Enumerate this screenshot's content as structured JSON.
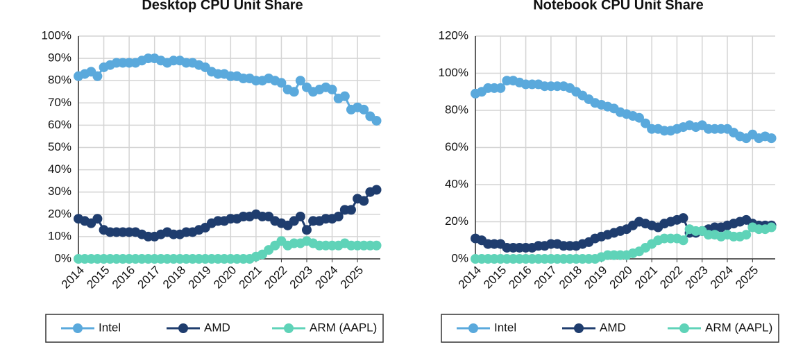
{
  "chart_data": [
    {
      "type": "line",
      "title": "Desktop CPU Unit Share",
      "x": [
        2014,
        2014.25,
        2014.5,
        2014.75,
        2015,
        2015.25,
        2015.5,
        2015.75,
        2016,
        2016.25,
        2016.5,
        2016.75,
        2017,
        2017.25,
        2017.5,
        2017.75,
        2018,
        2018.25,
        2018.5,
        2018.75,
        2019,
        2019.25,
        2019.5,
        2019.75,
        2020,
        2020.25,
        2020.5,
        2020.75,
        2021,
        2021.25,
        2021.5,
        2021.75,
        2022,
        2022.25,
        2022.5,
        2022.75,
        2023,
        2023.25,
        2023.5,
        2023.75,
        2024,
        2024.25,
        2024.5,
        2024.75,
        2025,
        2025.25,
        2025.5,
        2025.75
      ],
      "xlim": [
        2014,
        2025.9
      ],
      "xticks": [
        2014,
        2015,
        2016,
        2017,
        2018,
        2019,
        2020,
        2021,
        2022,
        2023,
        2024,
        2025
      ],
      "ylim": [
        0,
        100
      ],
      "yticks": [
        {
          "value": 0,
          "label": "0%"
        },
        {
          "value": 10,
          "label": "10%"
        },
        {
          "value": 20,
          "label": "20%"
        },
        {
          "value": 30,
          "label": "30%"
        },
        {
          "value": 40,
          "label": "40%"
        },
        {
          "value": 50,
          "label": "50%"
        },
        {
          "value": 60,
          "label": "60%"
        },
        {
          "value": 70,
          "label": "70%"
        },
        {
          "value": 80,
          "label": "80%"
        },
        {
          "value": 90,
          "label": "90%"
        },
        {
          "value": 100,
          "label": "100%"
        }
      ],
      "grid": true,
      "series": [
        {
          "name": "Intel",
          "color": "#5aa9dc",
          "values": [
            82,
            83,
            84,
            82,
            86,
            87,
            88,
            88,
            88,
            88,
            89,
            90,
            90,
            89,
            88,
            89,
            89,
            88,
            88,
            87,
            86,
            84,
            83,
            83,
            82,
            82,
            81,
            81,
            80,
            80,
            81,
            80,
            79,
            76,
            75,
            80,
            77,
            75,
            76,
            77,
            76,
            72,
            73,
            67,
            68,
            67,
            64,
            62
          ]
        },
        {
          "name": "AMD",
          "color": "#1f3d6e",
          "values": [
            18,
            17,
            16,
            18,
            13,
            12,
            12,
            12,
            12,
            12,
            11,
            10,
            10,
            11,
            12,
            11,
            11,
            12,
            12,
            13,
            14,
            16,
            17,
            17,
            18,
            18,
            19,
            19,
            20,
            19,
            19,
            17,
            16,
            15,
            17,
            19,
            13,
            17,
            17,
            18,
            18,
            19,
            22,
            22,
            27,
            26,
            30,
            31
          ]
        },
        {
          "name": "ARM (AAPL)",
          "color": "#5fd3b8",
          "values": [
            0,
            0,
            0,
            0,
            0,
            0,
            0,
            0,
            0,
            0,
            0,
            0,
            0,
            0,
            0,
            0,
            0,
            0,
            0,
            0,
            0,
            0,
            0,
            0,
            0,
            0,
            0,
            0,
            1,
            2,
            4,
            6,
            8,
            6,
            7,
            7,
            8,
            7,
            6,
            6,
            6,
            6,
            7,
            6,
            6,
            6,
            6,
            6
          ]
        }
      ]
    },
    {
      "type": "line",
      "title": "Notebook CPU Unit Share",
      "x": [
        2014,
        2014.25,
        2014.5,
        2014.75,
        2015,
        2015.25,
        2015.5,
        2015.75,
        2016,
        2016.25,
        2016.5,
        2016.75,
        2017,
        2017.25,
        2017.5,
        2017.75,
        2018,
        2018.25,
        2018.5,
        2018.75,
        2019,
        2019.25,
        2019.5,
        2019.75,
        2020,
        2020.25,
        2020.5,
        2020.75,
        2021,
        2021.25,
        2021.5,
        2021.75,
        2022,
        2022.25,
        2022.5,
        2022.75,
        2023,
        2023.25,
        2023.5,
        2023.75,
        2024,
        2024.25,
        2024.5,
        2024.75,
        2025,
        2025.25,
        2025.5,
        2025.75
      ],
      "xlim": [
        2014,
        2025.9
      ],
      "xticks": [
        2014,
        2015,
        2016,
        2017,
        2018,
        2019,
        2020,
        2021,
        2022,
        2023,
        2024,
        2025
      ],
      "ylim": [
        0,
        120
      ],
      "yticks": [
        {
          "value": 0,
          "label": "0%"
        },
        {
          "value": 20,
          "label": "20%"
        },
        {
          "value": 40,
          "label": "40%"
        },
        {
          "value": 60,
          "label": "60%"
        },
        {
          "value": 80,
          "label": "80%"
        },
        {
          "value": 100,
          "label": "100%"
        },
        {
          "value": 120,
          "label": "120%"
        }
      ],
      "grid": true,
      "series": [
        {
          "name": "Intel",
          "color": "#5aa9dc",
          "values": [
            89,
            90,
            92,
            92,
            92,
            96,
            96,
            95,
            94,
            94,
            94,
            93,
            93,
            93,
            93,
            92,
            90,
            88,
            86,
            84,
            83,
            82,
            81,
            79,
            78,
            77,
            76,
            73,
            70,
            70,
            69,
            69,
            70,
            71,
            72,
            71,
            72,
            70,
            70,
            70,
            70,
            68,
            66,
            65,
            67,
            65,
            66,
            65
          ]
        },
        {
          "name": "AMD",
          "color": "#1f3d6e",
          "values": [
            11,
            10,
            8,
            8,
            8,
            6,
            6,
            6,
            6,
            6,
            7,
            7,
            8,
            8,
            7,
            7,
            7,
            8,
            9,
            11,
            12,
            13,
            14,
            15,
            16,
            18,
            20,
            19,
            18,
            17,
            19,
            20,
            21,
            22,
            14,
            14,
            15,
            16,
            17,
            17,
            18,
            19,
            20,
            21,
            19,
            18,
            18,
            18
          ]
        },
        {
          "name": "ARM (AAPL)",
          "color": "#5fd3b8",
          "values": [
            0,
            0,
            0,
            0,
            0,
            0,
            0,
            0,
            0,
            0,
            0,
            0,
            0,
            0,
            0,
            0,
            0,
            0,
            0,
            0,
            1,
            2,
            2,
            2,
            2,
            3,
            4,
            6,
            8,
            10,
            11,
            11,
            11,
            10,
            16,
            15,
            15,
            13,
            13,
            12,
            13,
            12,
            12,
            13,
            17,
            16,
            16,
            17
          ]
        }
      ]
    }
  ]
}
